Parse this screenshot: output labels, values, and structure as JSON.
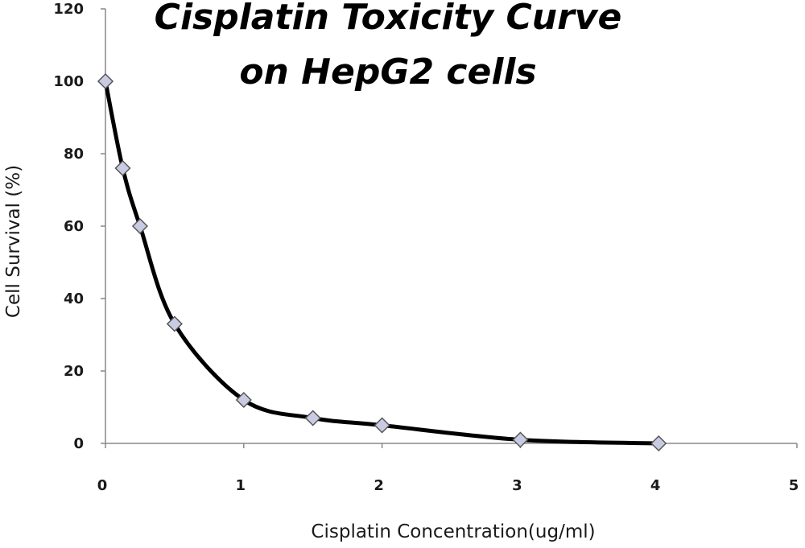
{
  "chart_data": {
    "type": "scatter",
    "title_lines": [
      "Cisplatin Toxicity Curve",
      "on HepG2 cells"
    ],
    "xlabel": "Cisplatin Concentration(ug/ml)",
    "ylabel": "Cell Survival (%)",
    "xlim": [
      0,
      5
    ],
    "ylim": [
      0,
      120
    ],
    "x_ticks": [
      0,
      1,
      2,
      3,
      4,
      5
    ],
    "y_ticks": [
      0,
      20,
      40,
      60,
      80,
      100,
      120
    ],
    "grid": false,
    "legend": "none",
    "smooth_line": true,
    "series": [
      {
        "x": [
          0,
          0.125,
          0.25,
          0.5,
          1,
          1.5,
          2,
          3,
          4
        ],
        "y": [
          100,
          76,
          60,
          33,
          12,
          7,
          5,
          1,
          0
        ]
      }
    ],
    "colors": {
      "line": "#000000",
      "marker_fill": "#c9cbe3",
      "marker_stroke": "#555555",
      "axis": "#888888"
    }
  }
}
